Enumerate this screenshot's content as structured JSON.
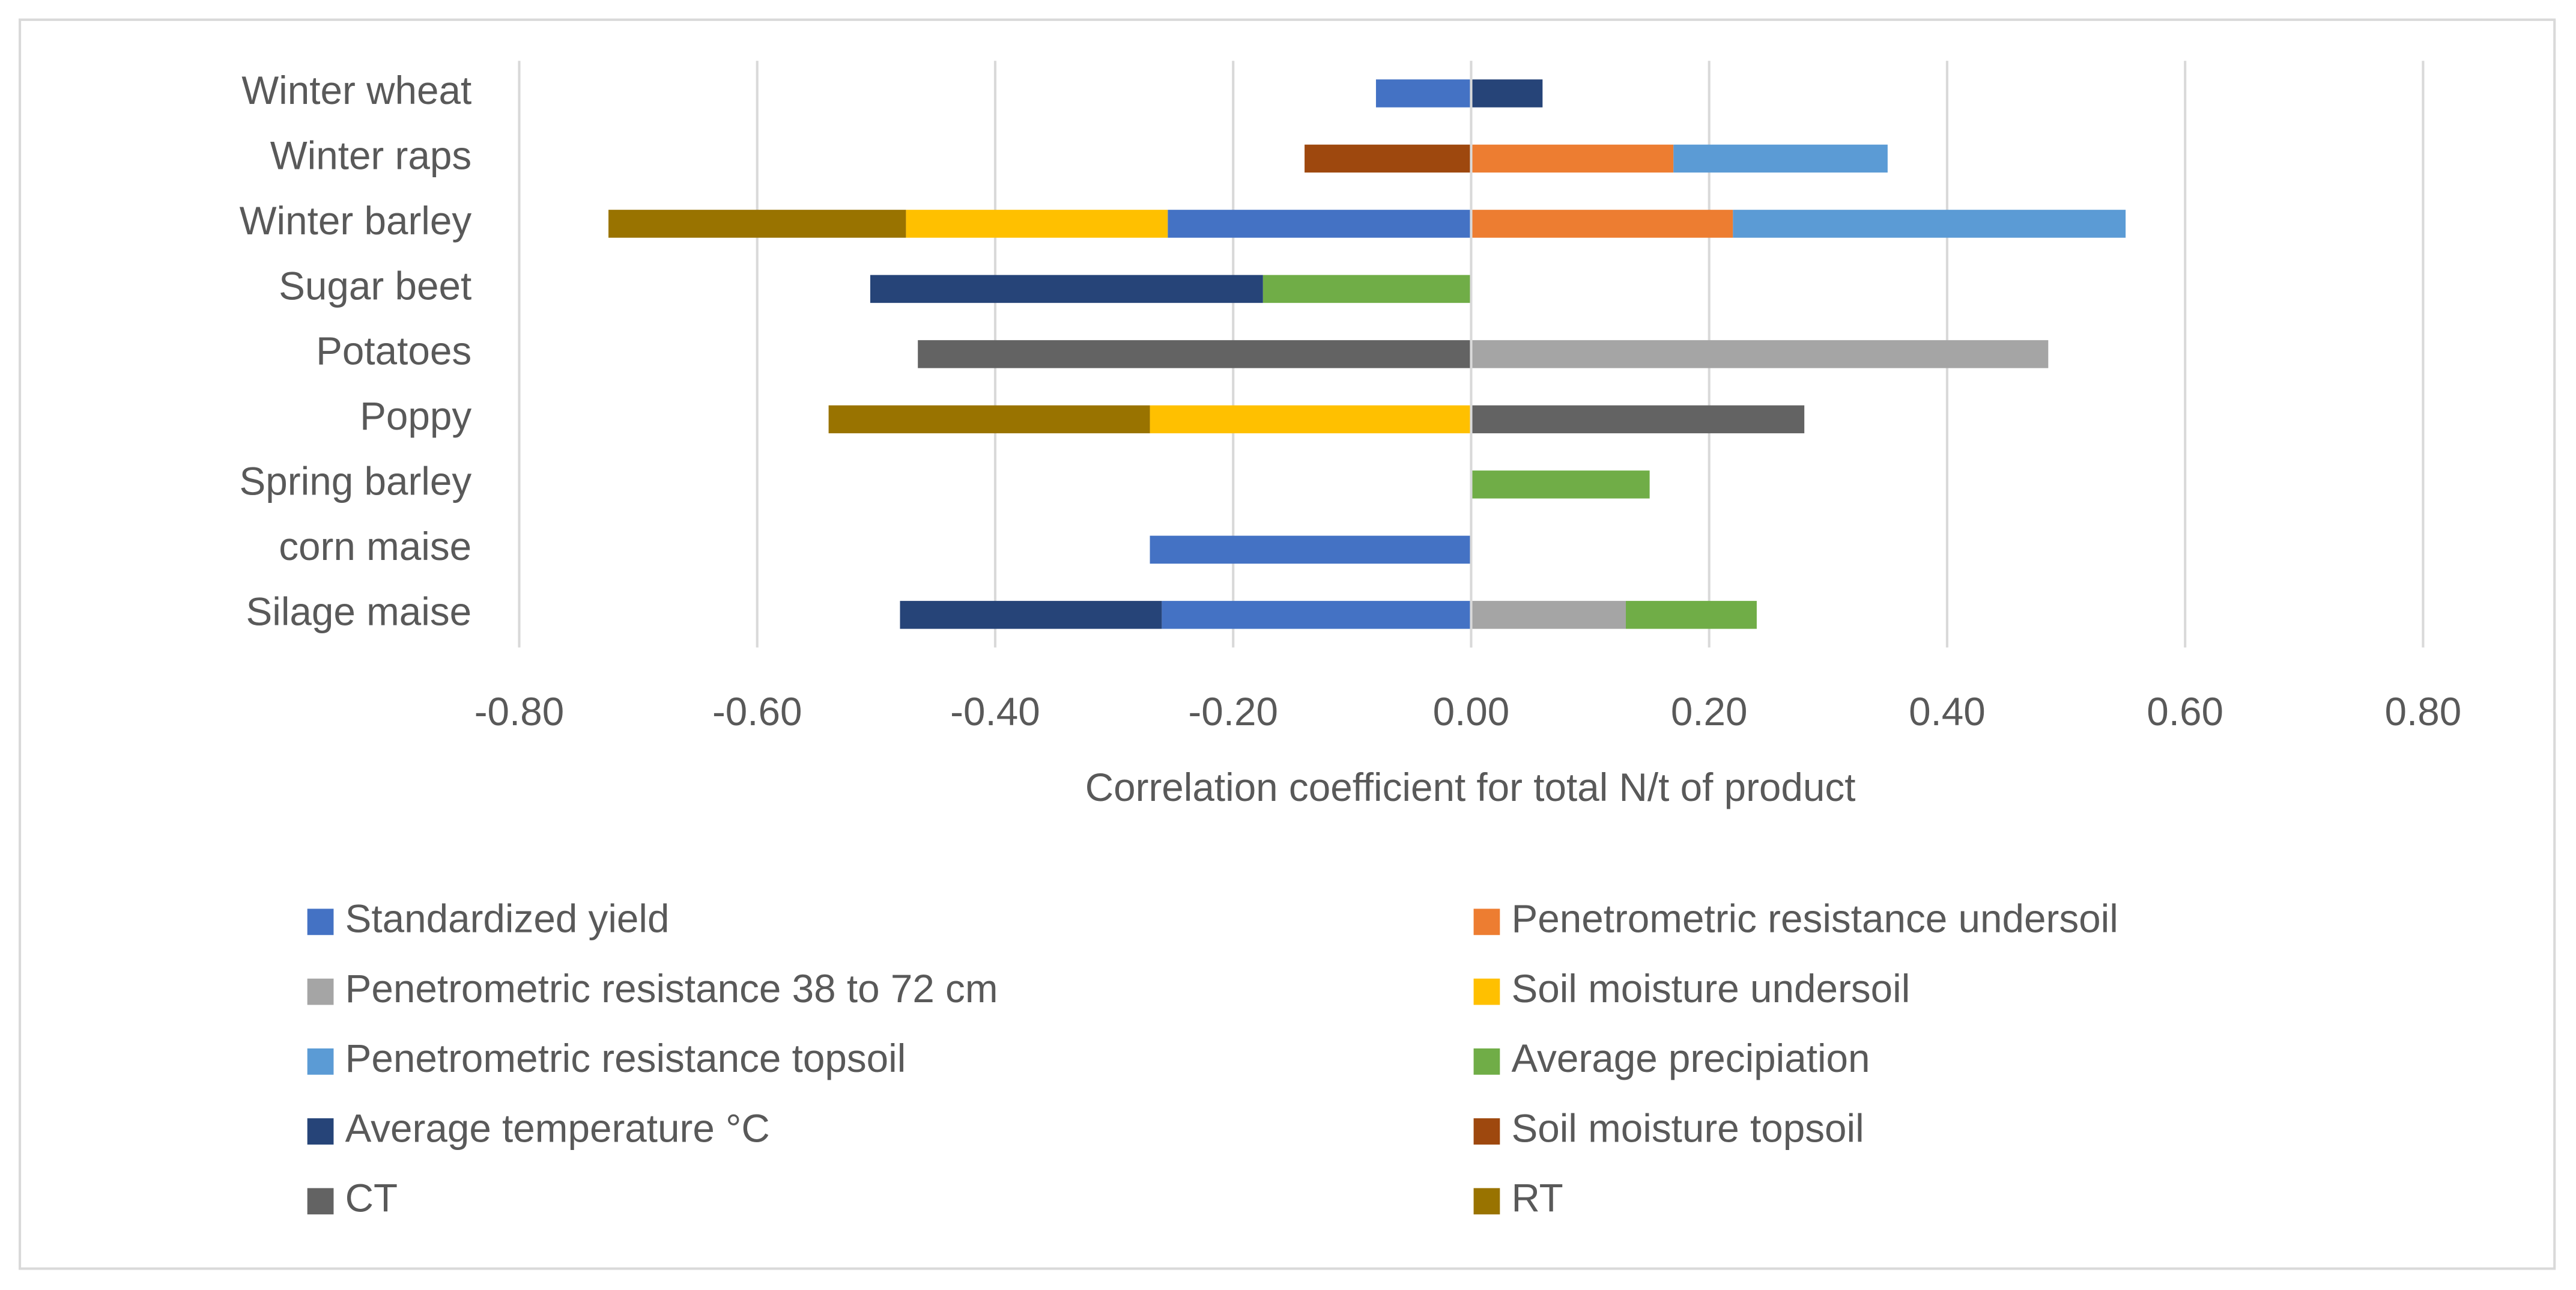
{
  "chart_data": {
    "type": "bar",
    "orientation": "horizontal",
    "stacked": true,
    "xlabel": "Correlation coefficient for total N/t of product",
    "categories": [
      "Winter wheat",
      "Winter raps",
      "Winter barley",
      "Sugar beet",
      "Potatoes",
      "Poppy",
      "Spring barley",
      "corn maise",
      "Silage maise"
    ],
    "series": [
      {
        "name": "Standardized yield",
        "color": "#4472c4",
        "values": [
          -0.08,
          null,
          -0.255,
          null,
          null,
          null,
          null,
          -0.27,
          -0.26
        ]
      },
      {
        "name": "Penetrometric resistance undersoil",
        "color": "#ed7d31",
        "values": [
          null,
          0.17,
          0.22,
          null,
          null,
          null,
          null,
          null,
          null
        ]
      },
      {
        "name": "Penetrometric resistance 38 to 72 cm",
        "color": "#a5a5a5",
        "values": [
          null,
          null,
          null,
          null,
          0.485,
          null,
          null,
          null,
          0.13
        ]
      },
      {
        "name": "Soil moisture undersoil",
        "color": "#ffc000",
        "values": [
          null,
          null,
          -0.22,
          null,
          null,
          -0.27,
          null,
          null,
          null
        ]
      },
      {
        "name": "Penetrometric resistance topsoil",
        "color": "#5b9bd5",
        "values": [
          null,
          0.18,
          0.33,
          null,
          null,
          null,
          null,
          null,
          null
        ]
      },
      {
        "name": "Average precipiation",
        "color": "#70ad47",
        "values": [
          null,
          null,
          null,
          -0.175,
          null,
          null,
          0.15,
          null,
          0.11
        ]
      },
      {
        "name": "Average temperature °C",
        "color": "#264478",
        "values": [
          0.06,
          null,
          null,
          -0.33,
          null,
          null,
          null,
          null,
          -0.22
        ]
      },
      {
        "name": "Soil moisture topsoil",
        "color": "#9e480e",
        "values": [
          null,
          -0.14,
          null,
          null,
          null,
          null,
          null,
          null,
          null
        ]
      },
      {
        "name": "CT",
        "color": "#636363",
        "values": [
          null,
          null,
          null,
          null,
          -0.465,
          0.28,
          null,
          null,
          null
        ]
      },
      {
        "name": "RT",
        "color": "#997300",
        "values": [
          null,
          null,
          -0.25,
          null,
          null,
          -0.27,
          null,
          null,
          null
        ]
      }
    ],
    "xlim": [
      -0.8,
      0.8
    ],
    "xticks": [
      {
        "value": -0.8,
        "label": "-0.80"
      },
      {
        "value": -0.6,
        "label": "-0.60"
      },
      {
        "value": -0.4,
        "label": "-0.40"
      },
      {
        "value": -0.2,
        "label": "-0.20"
      },
      {
        "value": 0,
        "label": "0.00"
      },
      {
        "value": 0.2,
        "label": "0.20"
      },
      {
        "value": 0.4,
        "label": "0.40"
      },
      {
        "value": 0.6,
        "label": "0.60"
      },
      {
        "value": 0.8,
        "label": "0.80"
      }
    ],
    "grid": true,
    "legend": "bottom"
  }
}
